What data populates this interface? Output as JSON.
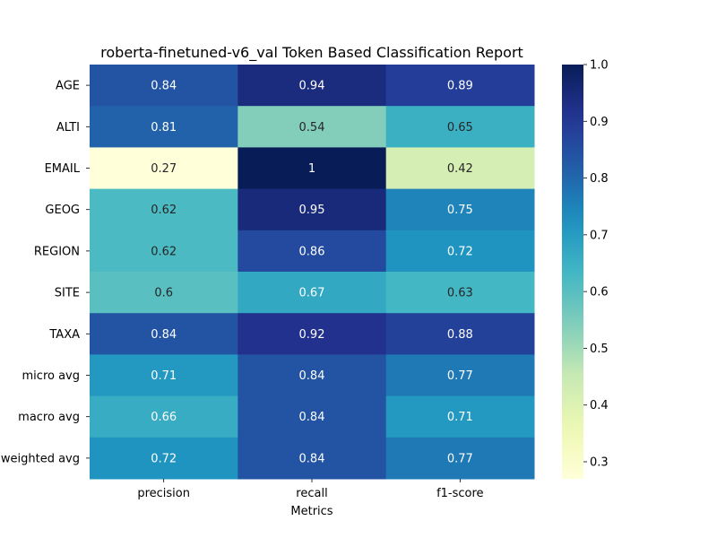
{
  "chart_data": {
    "type": "heatmap",
    "title": "roberta-finetuned-v6_val Token Based Classification Report",
    "xlabel": "Metrics",
    "ylabel": "",
    "columns": [
      "precision",
      "recall",
      "f1-score"
    ],
    "rows": [
      "AGE",
      "ALTI",
      "EMAIL",
      "GEOG",
      "REGION",
      "SITE",
      "TAXA",
      "micro avg",
      "macro avg",
      "weighted avg"
    ],
    "values": [
      [
        0.84,
        0.94,
        0.89
      ],
      [
        0.81,
        0.54,
        0.65
      ],
      [
        0.27,
        1.0,
        0.42
      ],
      [
        0.62,
        0.95,
        0.75
      ],
      [
        0.62,
        0.86,
        0.72
      ],
      [
        0.6,
        0.67,
        0.63
      ],
      [
        0.84,
        0.92,
        0.88
      ],
      [
        0.71,
        0.84,
        0.77
      ],
      [
        0.66,
        0.84,
        0.71
      ],
      [
        0.72,
        0.84,
        0.77
      ]
    ],
    "cell_labels": [
      [
        "0.84",
        "0.94",
        "0.89"
      ],
      [
        "0.81",
        "0.54",
        "0.65"
      ],
      [
        "0.27",
        "1",
        "0.42"
      ],
      [
        "0.62",
        "0.95",
        "0.75"
      ],
      [
        "0.62",
        "0.86",
        "0.72"
      ],
      [
        "0.6",
        "0.67",
        "0.63"
      ],
      [
        "0.84",
        "0.92",
        "0.88"
      ],
      [
        "0.71",
        "0.84",
        "0.77"
      ],
      [
        "0.66",
        "0.84",
        "0.71"
      ],
      [
        "0.72",
        "0.84",
        "0.77"
      ]
    ],
    "colorbar": {
      "colormap": "YlGnBu",
      "range": [
        0.27,
        1.0
      ],
      "ticks": [
        1.0,
        0.9,
        0.8,
        0.7,
        0.6,
        0.5,
        0.4,
        0.3
      ],
      "tick_labels": [
        "1.0",
        "0.9",
        "0.8",
        "0.7",
        "0.6",
        "0.5",
        "0.4",
        "0.3"
      ]
    },
    "grid": false,
    "legend": "colorbar-right"
  }
}
